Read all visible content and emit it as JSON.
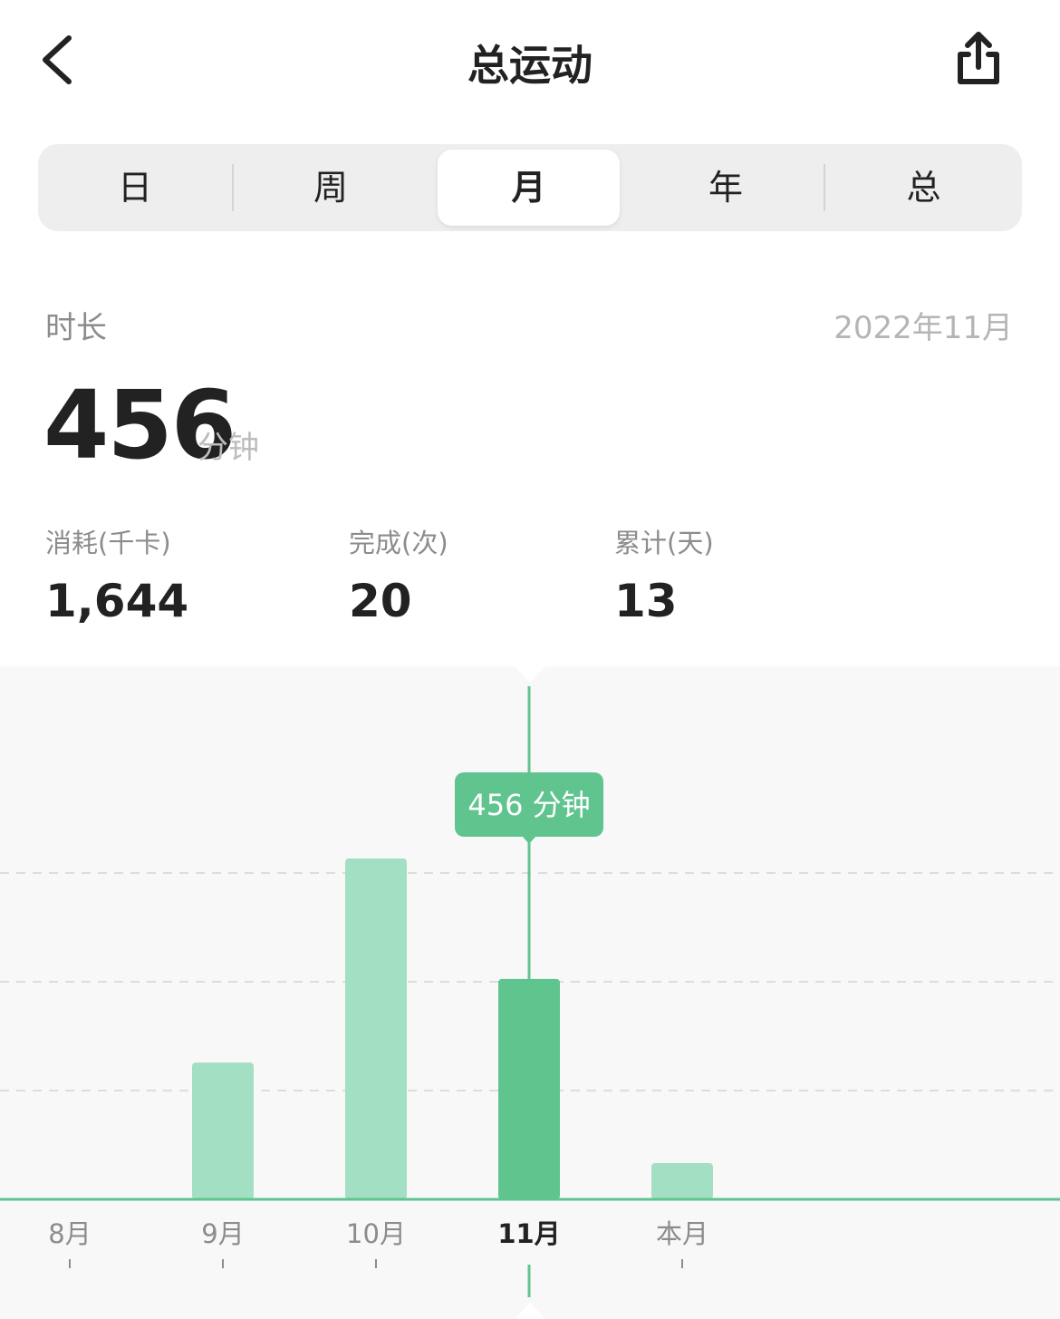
{
  "header": {
    "title": "总运动",
    "back_icon": "chevron-left-icon",
    "share_icon": "share-icon"
  },
  "tabs": [
    {
      "label": "日"
    },
    {
      "label": "周"
    },
    {
      "label": "月",
      "active": true
    },
    {
      "label": "年"
    },
    {
      "label": "总"
    }
  ],
  "summary": {
    "metric_label": "时长",
    "period": "2022年11月",
    "value": "456",
    "unit": "分钟"
  },
  "stats": [
    {
      "label": "消耗(千卡)",
      "value": "1,644"
    },
    {
      "label": "完成(次)",
      "value": "20"
    },
    {
      "label": "累计(天)",
      "value": "13"
    }
  ],
  "colors": {
    "bar": "#a3dfc2",
    "bar_selected": "#60c48f",
    "accent": "#60c48f"
  },
  "chart_data": {
    "type": "bar",
    "categories": [
      "8月",
      "9月",
      "10月",
      "11月",
      "本月"
    ],
    "values": [
      0,
      283,
      705,
      456,
      75
    ],
    "selected_index": 3,
    "tooltip": "456 分钟",
    "ylim": [
      0,
      900
    ],
    "gridlines": [
      225,
      450,
      675
    ],
    "grid": true
  }
}
